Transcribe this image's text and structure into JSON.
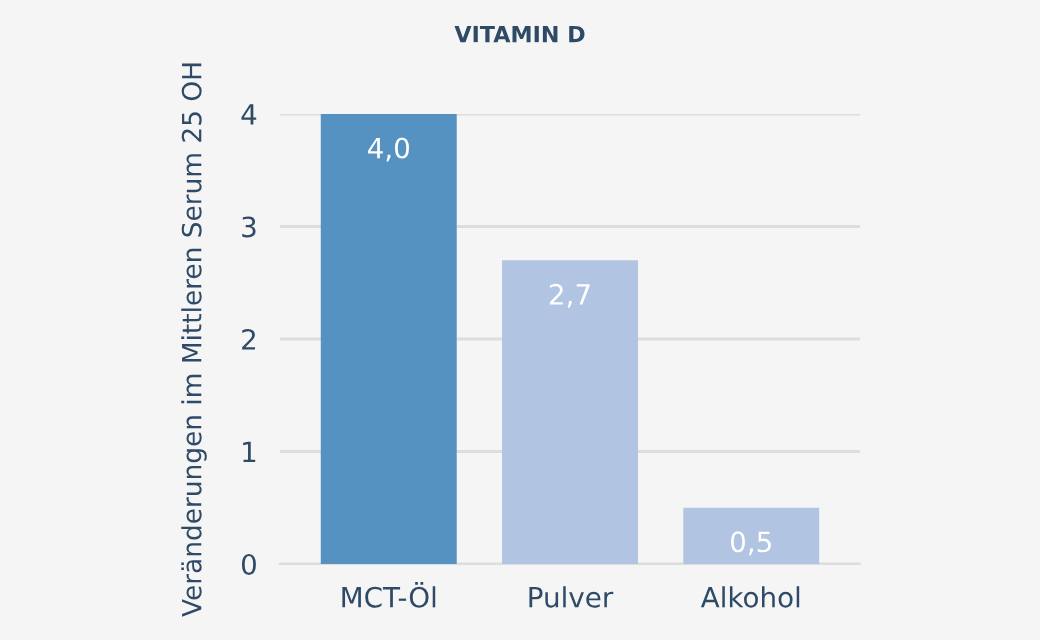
{
  "chart_data": {
    "type": "bar",
    "title": "VITAMIN D",
    "ylabel": "Veränderungen im Mittleren Serum 25 OH",
    "categories": [
      "MCT-Öl",
      "Pulver",
      "Alkohol"
    ],
    "values": [
      4.0,
      2.7,
      0.5
    ],
    "colors": [
      "#5592c2",
      "#b1c5e2",
      "#b1c5e2"
    ],
    "value_labels": [
      "4,0",
      "2,7",
      "0,5"
    ],
    "ylim": [
      0,
      4
    ],
    "yticks": [
      0,
      1,
      2,
      3,
      4
    ],
    "grid": "y",
    "legend": false
  }
}
